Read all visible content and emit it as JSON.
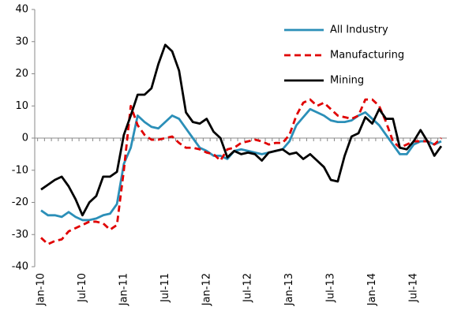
{
  "chart_data": {
    "type": "line",
    "categories": [
      "Jan-10",
      null,
      null,
      null,
      null,
      null,
      "Jul-10",
      null,
      null,
      null,
      null,
      null,
      "Jan-11",
      null,
      null,
      null,
      null,
      null,
      "Jul-11",
      null,
      null,
      null,
      null,
      null,
      "Jan-12",
      null,
      null,
      null,
      null,
      null,
      "Jul-12",
      null,
      null,
      null,
      null,
      null,
      "Jan-13",
      null,
      null,
      null,
      null,
      null,
      "Jul-13",
      null,
      null,
      null,
      null,
      null,
      "Jan-14",
      null,
      null,
      null,
      null,
      null,
      "Jul-14",
      null,
      null,
      null,
      null
    ],
    "series": [
      {
        "name": "All Industry",
        "color": "#2b8fb8",
        "style": "solid",
        "values": [
          -22.5,
          -24,
          -24,
          -24.5,
          -23,
          -24.5,
          -25.5,
          -25.5,
          -25,
          -24,
          -23.5,
          -20.5,
          -8,
          -3,
          7,
          5,
          3.5,
          3,
          5,
          7,
          6,
          3,
          0,
          -3,
          -4,
          -5.5,
          -5.5,
          -6.5,
          -4,
          -3.5,
          -4,
          -4.5,
          -5,
          -4.5,
          -4,
          -3.5,
          -1,
          4,
          6.5,
          9,
          8,
          7,
          5.5,
          5,
          5,
          5.5,
          7,
          8,
          6,
          4,
          1,
          -2,
          -5,
          -5,
          -2,
          -1,
          -1,
          -2,
          -1
        ]
      },
      {
        "name": "Manufacturing",
        "color": "#e00000",
        "style": "dashed",
        "values": [
          -31,
          -33,
          -32,
          -31.5,
          -29,
          -28,
          -27,
          -26,
          -26,
          -26.5,
          -28.5,
          -27,
          -10,
          10,
          4,
          1,
          -0.5,
          -0.5,
          0,
          0.5,
          -1.5,
          -3,
          -3,
          -3.5,
          -4.5,
          -5,
          -7,
          -3.5,
          -3,
          -1.5,
          -1,
          -0.5,
          -1,
          -2,
          -1.5,
          -1.5,
          1,
          7,
          11,
          12,
          10,
          11,
          9,
          7,
          6.5,
          6,
          7,
          12,
          12,
          10,
          5,
          -1,
          -3,
          -2,
          -1,
          -1,
          -1,
          -2,
          0
        ]
      },
      {
        "name": "Mining",
        "color": "#000000",
        "style": "solid",
        "values": [
          -16,
          -14.5,
          -13,
          -12,
          -15,
          -19,
          -24,
          -20,
          -18,
          -12,
          -12,
          -10.5,
          1,
          7,
          13.5,
          13.5,
          15.5,
          23,
          29,
          27,
          21,
          8,
          5,
          4.5,
          6,
          2,
          0,
          -6,
          -4,
          -5,
          -4.5,
          -5,
          -7,
          -4.5,
          -4,
          -3.5,
          -5,
          -4.5,
          -6.5,
          -5,
          -7,
          -9,
          -13,
          -13.5,
          -5.5,
          0.5,
          1.5,
          6.5,
          4.5,
          9,
          6,
          6,
          -3,
          -3.5,
          -1,
          2.5,
          -1,
          -5.5,
          -2.5
        ]
      }
    ],
    "ylim": [
      -40,
      40
    ],
    "yticks": [
      -40,
      -30,
      -20,
      -10,
      0,
      10,
      20,
      30,
      40
    ],
    "grid": false,
    "legend": "upper-right"
  }
}
